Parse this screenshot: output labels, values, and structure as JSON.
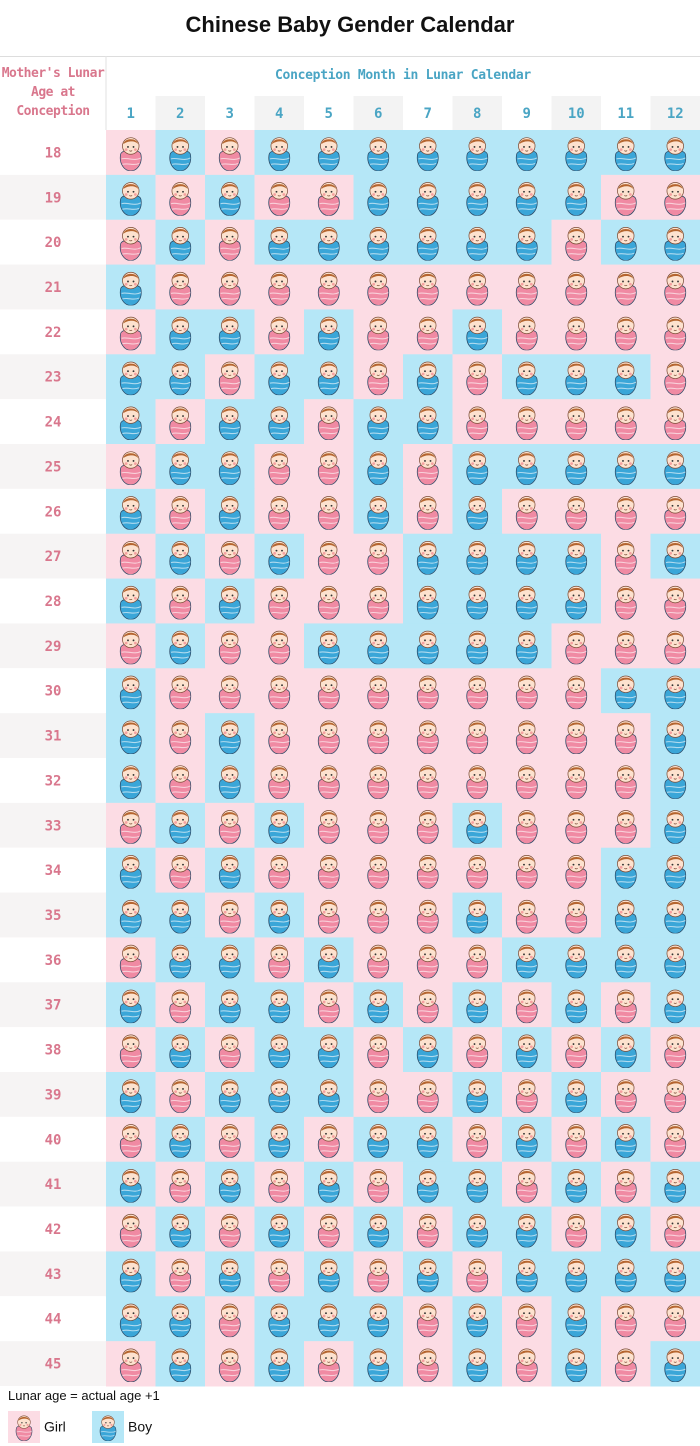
{
  "header": {
    "title": "Chinese Baby Gender Calendar"
  },
  "table": {
    "age_header": "Mother's Lunar Age at Conception",
    "month_header": "Conception Month in Lunar Calendar",
    "months": [
      1,
      2,
      3,
      4,
      5,
      6,
      7,
      8,
      9,
      10,
      11,
      12
    ],
    "rows": [
      {
        "age": 18,
        "cells": [
          "Girl",
          "Boy",
          "Girl",
          "Boy",
          "Boy",
          "Boy",
          "Boy",
          "Boy",
          "Boy",
          "Boy",
          "Boy",
          "Boy"
        ]
      },
      {
        "age": 19,
        "cells": [
          "Boy",
          "Girl",
          "Boy",
          "Girl",
          "Girl",
          "Boy",
          "Boy",
          "Boy",
          "Boy",
          "Boy",
          "Girl",
          "Girl"
        ]
      },
      {
        "age": 20,
        "cells": [
          "Girl",
          "Boy",
          "Girl",
          "Boy",
          "Boy",
          "Boy",
          "Boy",
          "Boy",
          "Boy",
          "Girl",
          "Boy",
          "Boy"
        ]
      },
      {
        "age": 21,
        "cells": [
          "Boy",
          "Girl",
          "Girl",
          "Girl",
          "Girl",
          "Girl",
          "Girl",
          "Girl",
          "Girl",
          "Girl",
          "Girl",
          "Girl"
        ]
      },
      {
        "age": 22,
        "cells": [
          "Girl",
          "Boy",
          "Boy",
          "Girl",
          "Boy",
          "Girl",
          "Girl",
          "Boy",
          "Girl",
          "Girl",
          "Girl",
          "Girl"
        ]
      },
      {
        "age": 23,
        "cells": [
          "Boy",
          "Boy",
          "Girl",
          "Boy",
          "Boy",
          "Girl",
          "Boy",
          "Girl",
          "Boy",
          "Boy",
          "Boy",
          "Girl"
        ]
      },
      {
        "age": 24,
        "cells": [
          "Boy",
          "Girl",
          "Boy",
          "Boy",
          "Girl",
          "Boy",
          "Boy",
          "Girl",
          "Girl",
          "Girl",
          "Girl",
          "Girl"
        ]
      },
      {
        "age": 25,
        "cells": [
          "Girl",
          "Boy",
          "Boy",
          "Girl",
          "Girl",
          "Boy",
          "Girl",
          "Boy",
          "Boy",
          "Boy",
          "Boy",
          "Boy"
        ]
      },
      {
        "age": 26,
        "cells": [
          "Boy",
          "Girl",
          "Boy",
          "Girl",
          "Girl",
          "Boy",
          "Girl",
          "Boy",
          "Girl",
          "Girl",
          "Girl",
          "Girl"
        ]
      },
      {
        "age": 27,
        "cells": [
          "Girl",
          "Boy",
          "Girl",
          "Boy",
          "Girl",
          "Girl",
          "Boy",
          "Boy",
          "Boy",
          "Boy",
          "Girl",
          "Boy"
        ]
      },
      {
        "age": 28,
        "cells": [
          "Boy",
          "Girl",
          "Boy",
          "Girl",
          "Girl",
          "Girl",
          "Boy",
          "Boy",
          "Boy",
          "Boy",
          "Girl",
          "Girl"
        ]
      },
      {
        "age": 29,
        "cells": [
          "Girl",
          "Boy",
          "Girl",
          "Girl",
          "Boy",
          "Boy",
          "Boy",
          "Boy",
          "Boy",
          "Girl",
          "Girl",
          "Girl"
        ]
      },
      {
        "age": 30,
        "cells": [
          "Boy",
          "Girl",
          "Girl",
          "Girl",
          "Girl",
          "Girl",
          "Girl",
          "Girl",
          "Girl",
          "Girl",
          "Boy",
          "Boy"
        ]
      },
      {
        "age": 31,
        "cells": [
          "Boy",
          "Girl",
          "Boy",
          "Girl",
          "Girl",
          "Girl",
          "Girl",
          "Girl",
          "Girl",
          "Girl",
          "Girl",
          "Boy"
        ]
      },
      {
        "age": 32,
        "cells": [
          "Boy",
          "Girl",
          "Boy",
          "Girl",
          "Girl",
          "Girl",
          "Girl",
          "Girl",
          "Girl",
          "Girl",
          "Girl",
          "Boy"
        ]
      },
      {
        "age": 33,
        "cells": [
          "Girl",
          "Boy",
          "Girl",
          "Boy",
          "Girl",
          "Girl",
          "Girl",
          "Boy",
          "Girl",
          "Girl",
          "Girl",
          "Boy"
        ]
      },
      {
        "age": 34,
        "cells": [
          "Boy",
          "Girl",
          "Boy",
          "Girl",
          "Girl",
          "Girl",
          "Girl",
          "Girl",
          "Girl",
          "Girl",
          "Boy",
          "Boy"
        ]
      },
      {
        "age": 35,
        "cells": [
          "Boy",
          "Boy",
          "Girl",
          "Boy",
          "Girl",
          "Girl",
          "Girl",
          "Boy",
          "Girl",
          "Girl",
          "Boy",
          "Boy"
        ]
      },
      {
        "age": 36,
        "cells": [
          "Girl",
          "Boy",
          "Boy",
          "Girl",
          "Boy",
          "Girl",
          "Girl",
          "Girl",
          "Boy",
          "Boy",
          "Boy",
          "Boy"
        ]
      },
      {
        "age": 37,
        "cells": [
          "Boy",
          "Girl",
          "Boy",
          "Boy",
          "Girl",
          "Boy",
          "Girl",
          "Boy",
          "Girl",
          "Boy",
          "Girl",
          "Boy"
        ]
      },
      {
        "age": 38,
        "cells": [
          "Girl",
          "Boy",
          "Girl",
          "Boy",
          "Boy",
          "Girl",
          "Boy",
          "Girl",
          "Boy",
          "Girl",
          "Boy",
          "Girl"
        ]
      },
      {
        "age": 39,
        "cells": [
          "Boy",
          "Girl",
          "Boy",
          "Boy",
          "Boy",
          "Girl",
          "Girl",
          "Boy",
          "Girl",
          "Boy",
          "Girl",
          "Girl"
        ]
      },
      {
        "age": 40,
        "cells": [
          "Girl",
          "Boy",
          "Girl",
          "Boy",
          "Girl",
          "Boy",
          "Boy",
          "Girl",
          "Boy",
          "Girl",
          "Boy",
          "Girl"
        ]
      },
      {
        "age": 41,
        "cells": [
          "Boy",
          "Girl",
          "Boy",
          "Girl",
          "Boy",
          "Girl",
          "Boy",
          "Boy",
          "Girl",
          "Boy",
          "Girl",
          "Boy"
        ]
      },
      {
        "age": 42,
        "cells": [
          "Girl",
          "Boy",
          "Girl",
          "Boy",
          "Girl",
          "Boy",
          "Girl",
          "Boy",
          "Boy",
          "Girl",
          "Boy",
          "Girl"
        ]
      },
      {
        "age": 43,
        "cells": [
          "Boy",
          "Girl",
          "Boy",
          "Girl",
          "Boy",
          "Girl",
          "Boy",
          "Girl",
          "Boy",
          "Boy",
          "Boy",
          "Boy"
        ]
      },
      {
        "age": 44,
        "cells": [
          "Boy",
          "Boy",
          "Girl",
          "Boy",
          "Boy",
          "Boy",
          "Girl",
          "Boy",
          "Girl",
          "Boy",
          "Girl",
          "Girl"
        ]
      },
      {
        "age": 45,
        "cells": [
          "Girl",
          "Boy",
          "Girl",
          "Boy",
          "Girl",
          "Boy",
          "Girl",
          "Boy",
          "Girl",
          "Boy",
          "Girl",
          "Boy"
        ]
      }
    ]
  },
  "footer": {
    "note": "Lunar age = actual age +1",
    "legend": [
      {
        "label": "Girl",
        "color": "#fcdce4",
        "icon": "#f08aa3"
      },
      {
        "label": "Boy",
        "color": "#b5e7f7",
        "icon": "#3aa6d8"
      }
    ]
  }
}
